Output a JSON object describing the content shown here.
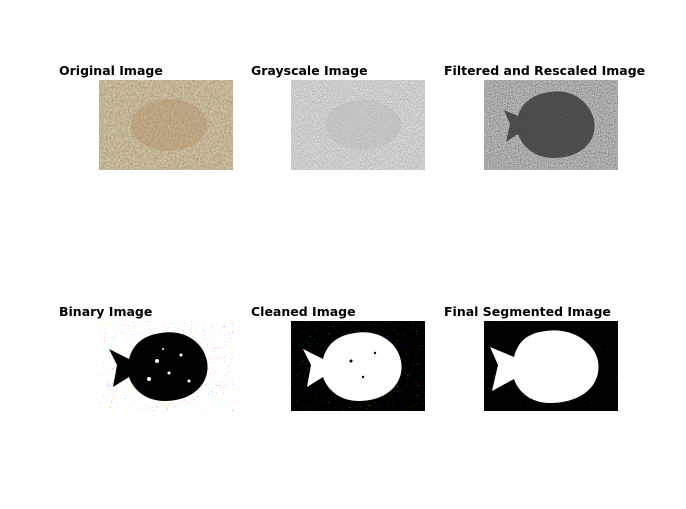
{
  "figure": {
    "panels": [
      {
        "id": "original",
        "title": "Original Image"
      },
      {
        "id": "grayscale",
        "title": "Grayscale Image"
      },
      {
        "id": "filtered",
        "title": "Filtered and Rescaled Image"
      },
      {
        "id": "binary",
        "title": "Binary Image"
      },
      {
        "id": "cleaned",
        "title": "Cleaned Image"
      },
      {
        "id": "final",
        "title": "Final Segmented Image"
      }
    ]
  },
  "colors": {
    "figure_background": "#ffffff",
    "sand_base": "#9c8460",
    "fish_tone": "#b08a5e",
    "gray_base": "#9a9a9a",
    "filtered_base": "#555555",
    "filtered_fish": "#2e2e2e",
    "mask_black": "#000000",
    "mask_white": "#ffffff"
  }
}
